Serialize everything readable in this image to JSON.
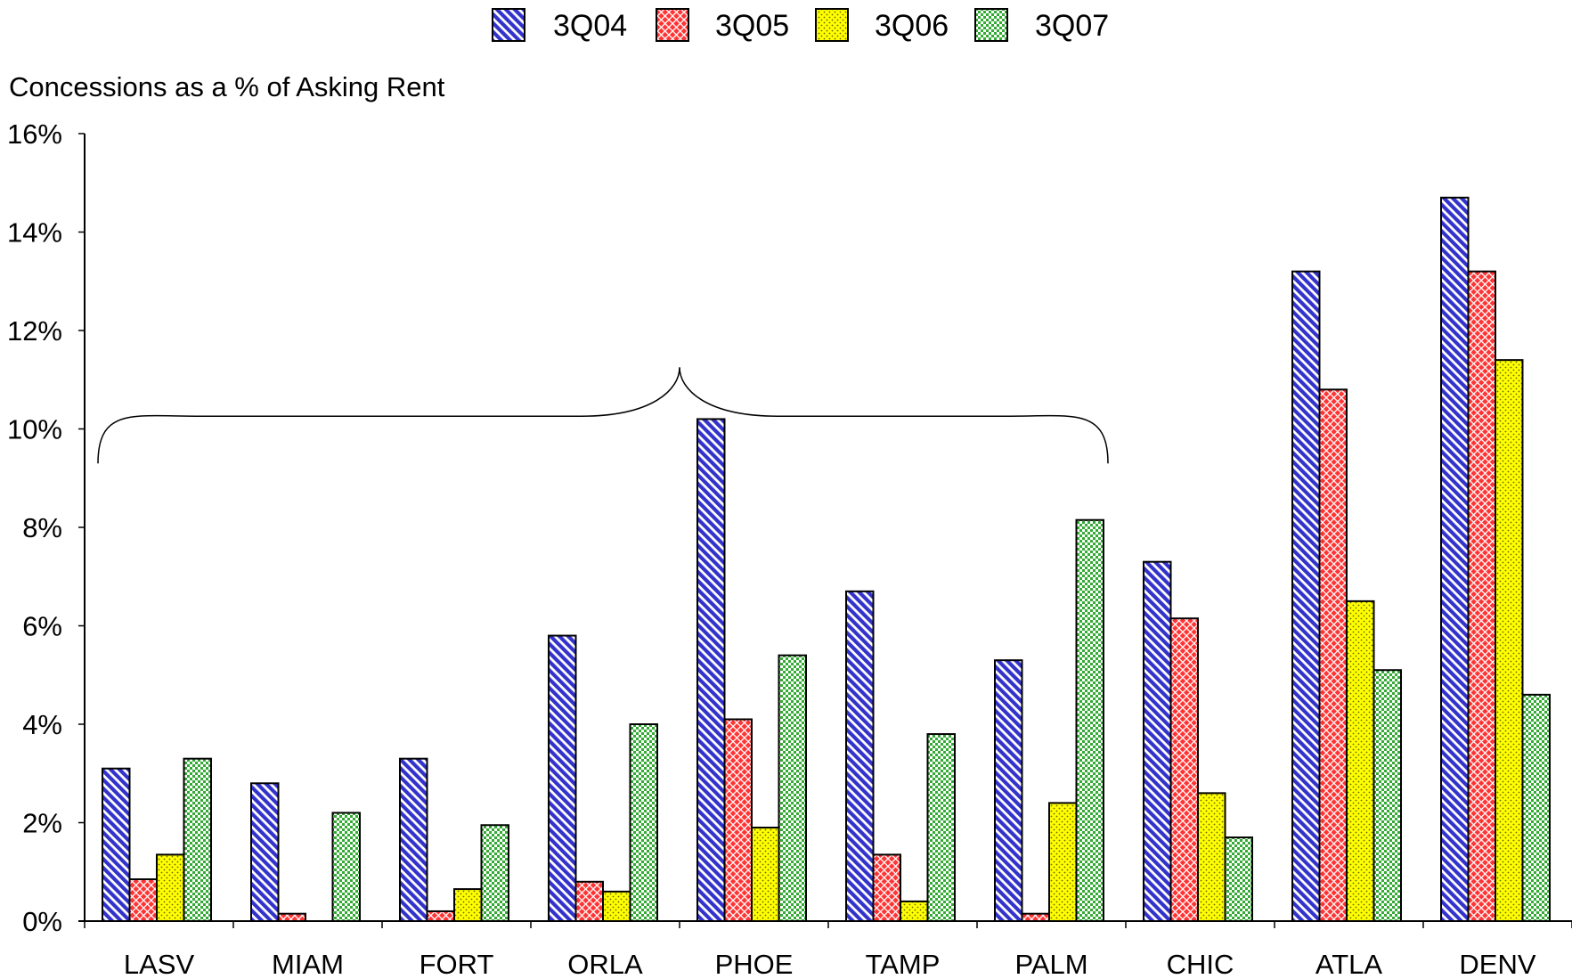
{
  "chart_data": {
    "type": "bar",
    "title": "",
    "ylabel": "Concessions as a % of Asking Rent",
    "xlabel": "",
    "ylim": [
      0,
      16
    ],
    "y_ticks": [
      "0%",
      "2%",
      "4%",
      "6%",
      "8%",
      "10%",
      "12%",
      "14%",
      "16%"
    ],
    "y_tick_values": [
      0,
      2,
      4,
      6,
      8,
      10,
      12,
      14,
      16
    ],
    "categories": [
      "LASV",
      "MIAM",
      "FORT",
      "ORLA",
      "PHOE",
      "TAMP",
      "PALM",
      "CHIC",
      "ATLA",
      "DENV"
    ],
    "series": [
      {
        "name": "3Q04",
        "color": "#3333cc",
        "pattern": "diagonal-hatch",
        "values": [
          3.1,
          2.8,
          3.3,
          5.8,
          10.2,
          6.7,
          5.3,
          7.3,
          13.2,
          14.7
        ]
      },
      {
        "name": "3Q05",
        "color": "#ff3333",
        "pattern": "crosshatch",
        "values": [
          0.85,
          0.15,
          0.2,
          0.8,
          4.1,
          1.35,
          0.15,
          6.15,
          10.8,
          13.2
        ]
      },
      {
        "name": "3Q06",
        "color": "#ffff00",
        "pattern": "dots",
        "values": [
          1.35,
          0,
          0.65,
          0.6,
          1.9,
          0.4,
          2.4,
          2.6,
          6.5,
          11.4
        ]
      },
      {
        "name": "3Q07",
        "color": "#33aa33",
        "pattern": "checker",
        "values": [
          3.3,
          2.2,
          1.95,
          4.0,
          5.4,
          3.8,
          8.15,
          1.7,
          5.1,
          4.6
        ]
      }
    ],
    "grid": false,
    "legend_position": "top-center",
    "annotation": {
      "type": "brace",
      "spans_categories": [
        "LASV",
        "PALM"
      ],
      "tip_category_between": [
        "ORLA",
        "PHOE"
      ],
      "level": 11.2
    }
  },
  "colors": {
    "axis": "#000000",
    "background": "#ffffff"
  }
}
